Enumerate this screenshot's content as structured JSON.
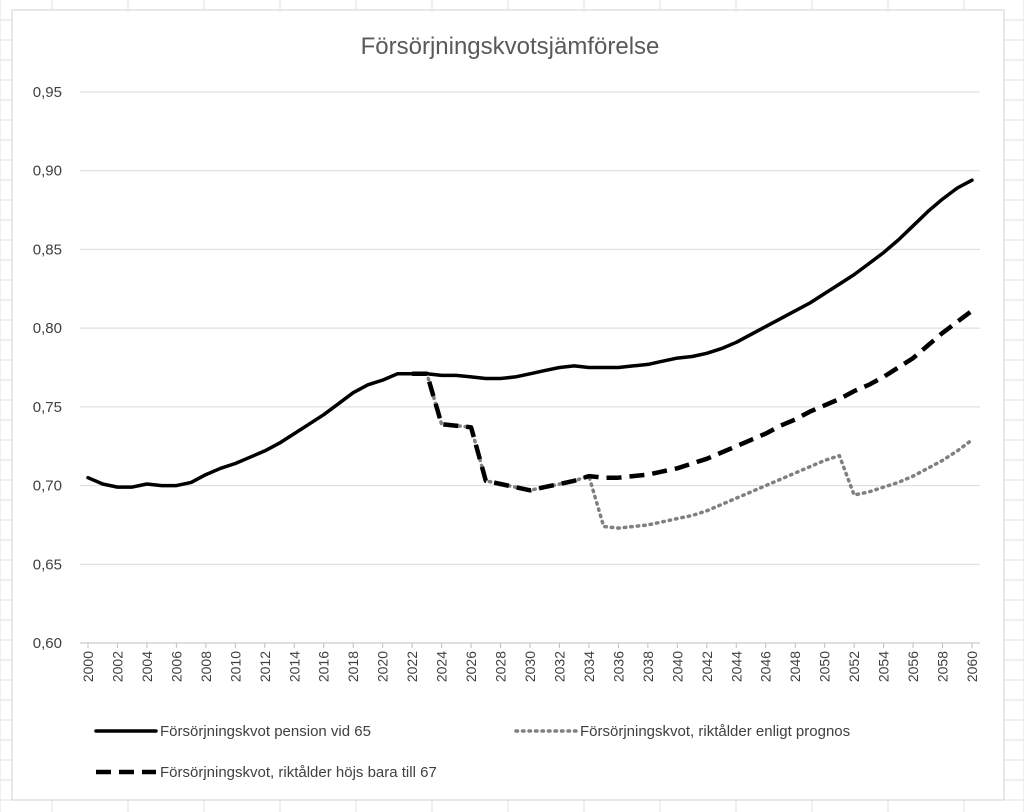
{
  "chart_data": {
    "type": "line",
    "title": "Försörjningskvotsjämförelse",
    "xlabel": "",
    "ylabel": "",
    "ylim": [
      0.6,
      0.95
    ],
    "yticks": [
      "0,60",
      "0,65",
      "0,70",
      "0,75",
      "0,80",
      "0,85",
      "0,90",
      "0,95"
    ],
    "ytick_values": [
      0.6,
      0.65,
      0.7,
      0.75,
      0.8,
      0.85,
      0.9,
      0.95
    ],
    "xlim": [
      2000,
      2060
    ],
    "xticks": [
      "2000",
      "2002",
      "2004",
      "2006",
      "2008",
      "2010",
      "2012",
      "2014",
      "2016",
      "2018",
      "2020",
      "2022",
      "2024",
      "2026",
      "2028",
      "2030",
      "2032",
      "2034",
      "2036",
      "2038",
      "2040",
      "2042",
      "2044",
      "2046",
      "2048",
      "2050",
      "2052",
      "2054",
      "2056",
      "2058",
      "2060"
    ],
    "grid": true,
    "legend_position": "bottom",
    "series": [
      {
        "name": "Försörjningskvot pension vid 65",
        "style": "solid",
        "color": "#000000",
        "x": [
          2000,
          2001,
          2002,
          2003,
          2004,
          2005,
          2006,
          2007,
          2008,
          2009,
          2010,
          2011,
          2012,
          2013,
          2014,
          2015,
          2016,
          2017,
          2018,
          2019,
          2020,
          2021,
          2022,
          2023,
          2024,
          2025,
          2026,
          2027,
          2028,
          2029,
          2030,
          2031,
          2032,
          2033,
          2034,
          2035,
          2036,
          2037,
          2038,
          2039,
          2040,
          2041,
          2042,
          2043,
          2044,
          2045,
          2046,
          2047,
          2048,
          2049,
          2050,
          2051,
          2052,
          2053,
          2054,
          2055,
          2056,
          2057,
          2058,
          2059,
          2060
        ],
        "values": [
          0.705,
          0.701,
          0.699,
          0.699,
          0.701,
          0.7,
          0.7,
          0.702,
          0.707,
          0.711,
          0.714,
          0.718,
          0.722,
          0.727,
          0.733,
          0.739,
          0.745,
          0.752,
          0.759,
          0.764,
          0.767,
          0.771,
          0.771,
          0.771,
          0.77,
          0.77,
          0.769,
          0.768,
          0.768,
          0.769,
          0.771,
          0.773,
          0.775,
          0.776,
          0.775,
          0.775,
          0.775,
          0.776,
          0.777,
          0.779,
          0.781,
          0.782,
          0.784,
          0.787,
          0.791,
          0.796,
          0.801,
          0.806,
          0.811,
          0.816,
          0.822,
          0.828,
          0.834,
          0.841,
          0.848,
          0.856,
          0.865,
          0.874,
          0.882,
          0.889,
          0.894
        ]
      },
      {
        "name": "Försörjningskvot, riktålder enligt prognos",
        "style": "dotted",
        "color": "#808080",
        "x": [
          2022,
          2023,
          2024,
          2025,
          2026,
          2027,
          2028,
          2029,
          2030,
          2031,
          2032,
          2033,
          2034,
          2035,
          2036,
          2037,
          2038,
          2039,
          2040,
          2041,
          2042,
          2043,
          2044,
          2045,
          2046,
          2047,
          2048,
          2049,
          2050,
          2051,
          2052,
          2053,
          2054,
          2055,
          2056,
          2057,
          2058,
          2059,
          2060
        ],
        "values": [
          0.771,
          0.771,
          0.739,
          0.738,
          0.737,
          0.703,
          0.701,
          0.699,
          0.697,
          0.699,
          0.701,
          0.703,
          0.706,
          0.674,
          0.673,
          0.674,
          0.675,
          0.677,
          0.679,
          0.681,
          0.684,
          0.688,
          0.692,
          0.696,
          0.7,
          0.704,
          0.708,
          0.712,
          0.716,
          0.719,
          0.694,
          0.696,
          0.699,
          0.702,
          0.706,
          0.711,
          0.716,
          0.722,
          0.729
        ]
      },
      {
        "name": "Försörjningskvot, riktålder höjs bara till 67",
        "style": "dashed",
        "color": "#000000",
        "x": [
          2022,
          2023,
          2024,
          2025,
          2026,
          2027,
          2028,
          2029,
          2030,
          2031,
          2032,
          2033,
          2034,
          2035,
          2036,
          2037,
          2038,
          2039,
          2040,
          2041,
          2042,
          2043,
          2044,
          2045,
          2046,
          2047,
          2048,
          2049,
          2050,
          2051,
          2052,
          2053,
          2054,
          2055,
          2056,
          2057,
          2058,
          2059,
          2060
        ],
        "values": [
          0.771,
          0.771,
          0.739,
          0.738,
          0.737,
          0.703,
          0.701,
          0.699,
          0.697,
          0.699,
          0.701,
          0.703,
          0.706,
          0.705,
          0.705,
          0.706,
          0.707,
          0.709,
          0.711,
          0.714,
          0.717,
          0.721,
          0.725,
          0.729,
          0.733,
          0.738,
          0.742,
          0.747,
          0.751,
          0.755,
          0.76,
          0.764,
          0.769,
          0.775,
          0.781,
          0.789,
          0.797,
          0.804,
          0.811
        ]
      }
    ]
  }
}
